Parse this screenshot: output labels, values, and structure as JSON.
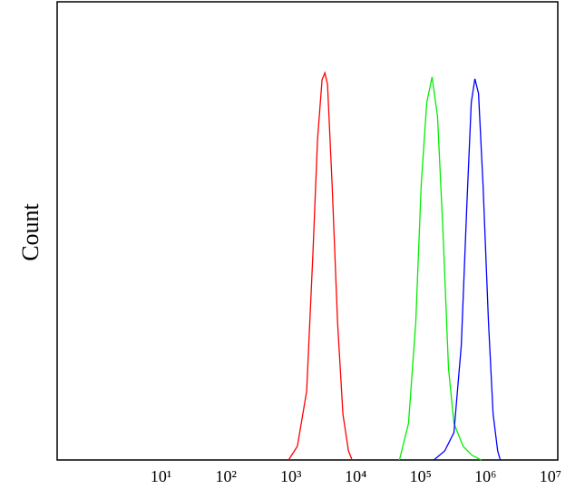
{
  "chart_data": {
    "type": "line",
    "ylabel": "Count",
    "xscale": "log",
    "xlim": [
      0.25,
      13000000
    ],
    "ylim": [
      0,
      100
    ],
    "xticks": [
      {
        "value": 10,
        "label": "10¹"
      },
      {
        "value": 100,
        "label": "10²"
      },
      {
        "value": 1000,
        "label": "10³"
      },
      {
        "value": 10000,
        "label": "10⁴"
      },
      {
        "value": 100000,
        "label": "10⁵"
      },
      {
        "value": 1000000,
        "label": "10⁶"
      },
      {
        "value": 10000000,
        "label": "10⁷"
      }
    ],
    "series": [
      {
        "color": "#ff0000",
        "x": [
          920,
          1260,
          1750,
          2190,
          2580,
          3030,
          3340,
          3670,
          4320,
          5240,
          6350,
          7720,
          8790
        ],
        "values": [
          0,
          3,
          15,
          45,
          70,
          83,
          84.5,
          82,
          60,
          30,
          10,
          2,
          0
        ]
      },
      {
        "color": "#00ee00",
        "x": [
          47100,
          65000,
          84100,
          102000,
          124000,
          150000,
          182000,
          221000,
          269000,
          326000,
          451000,
          622000,
          859000
        ],
        "values": [
          0,
          8,
          30,
          60,
          78,
          83.6,
          75,
          50,
          20,
          8,
          3,
          1,
          0
        ]
      },
      {
        "color": "#0000ff",
        "x": [
          160000,
          236000,
          326000,
          423000,
          513000,
          603000,
          686000,
          780000,
          916000,
          1110000,
          1310000,
          1540000,
          1690000
        ],
        "values": [
          0,
          2,
          6,
          25,
          55,
          78,
          83.2,
          80,
          60,
          30,
          10,
          2,
          0
        ]
      }
    ]
  }
}
